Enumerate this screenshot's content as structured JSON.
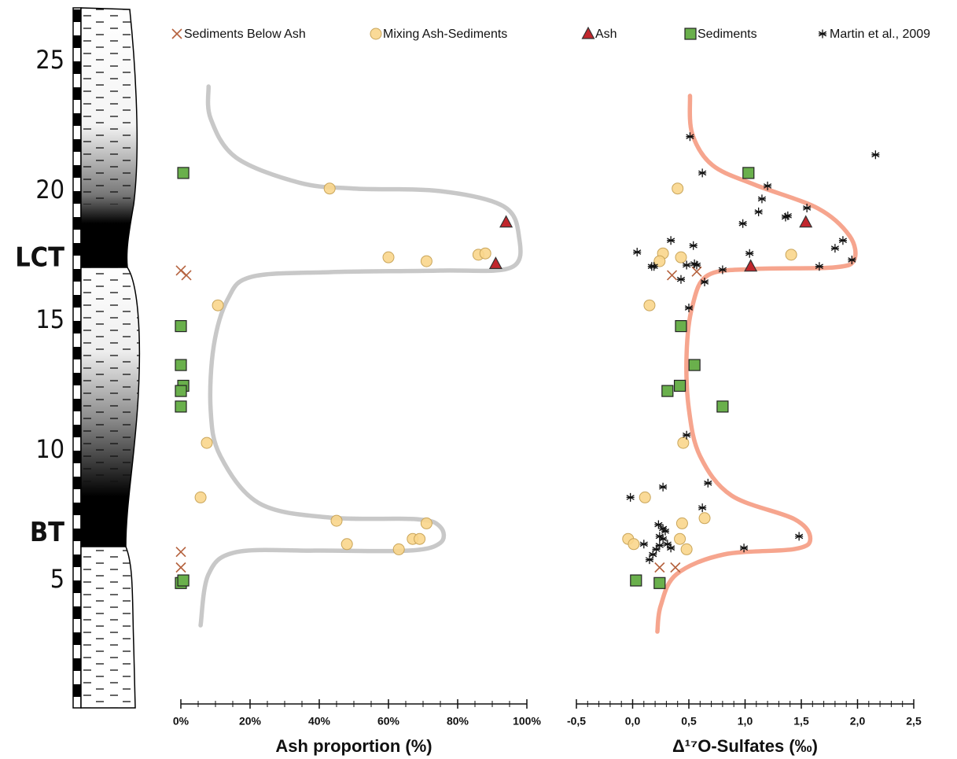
{
  "chart_data": [
    {
      "type": "scatter",
      "xlabel": "Ash proportion (%)",
      "xlim": [
        0,
        100
      ],
      "xticks": [
        {
          "value": 0,
          "label": "0%"
        },
        {
          "value": 20,
          "label": "20%"
        },
        {
          "value": 40,
          "label": "40%"
        },
        {
          "value": 60,
          "label": "60%"
        },
        {
          "value": 80,
          "label": "80%"
        },
        {
          "value": 100,
          "label": "100%"
        }
      ],
      "xminorticks": [
        5,
        10,
        15,
        25,
        30,
        35,
        45,
        50,
        55,
        65,
        70,
        75,
        85,
        90,
        95
      ],
      "ylim": [
        0,
        27
      ],
      "yticks": [
        5,
        10,
        15,
        20,
        25,
        {
          "value": 17.4,
          "label": "LCT"
        },
        {
          "value": 6.8,
          "label": "BT"
        }
      ],
      "series": [
        {
          "name": "Sediments Below Ash",
          "color": "#b5623e",
          "marker": "x",
          "x": [
            0,
            1.6,
            0,
            0
          ],
          "values": [
            16.94,
            16.76,
            6.1,
            5.5
          ]
        },
        {
          "name": "Mixing Ash-Sediments",
          "color": "#f9d68c",
          "marker": "circle",
          "x": [
            43,
            60,
            71,
            86,
            88,
            10.7,
            7.5,
            5.7,
            45,
            71,
            48,
            67,
            69,
            63
          ],
          "values": [
            20.1,
            17.45,
            17.3,
            17.55,
            17.6,
            15.6,
            10.3,
            8.2,
            7.3,
            7.2,
            6.4,
            6.6,
            6.6,
            6.2
          ]
        },
        {
          "name": "Ash",
          "color": "#c1272d",
          "marker": "triangle",
          "x": [
            94,
            91
          ],
          "values": [
            18.8,
            17.2
          ]
        },
        {
          "name": "Sediments",
          "color": "#6ab04c",
          "marker": "square",
          "x": [
            0.7,
            0,
            0,
            0.7,
            0,
            0,
            0,
            0.7
          ],
          "values": [
            20.7,
            14.8,
            13.3,
            12.5,
            12.3,
            11.7,
            4.9,
            5.0
          ]
        }
      ],
      "curve": {
        "color": "#c8c8c8",
        "x": [
          8,
          8.6,
          15.9,
          34.1,
          50,
          75,
          93.2,
          97.7,
          95.5,
          75,
          43.2,
          20.5,
          13.6,
          9.5,
          8.6,
          11.4,
          22.7,
          43.2,
          68.2,
          75,
          75,
          65.9,
          38.6,
          15.9,
          8,
          5.7
        ],
        "y": [
          24.03,
          22.8,
          21.3,
          20.33,
          20.1,
          20.0,
          19.42,
          18.27,
          17.06,
          16.94,
          16.88,
          16.7,
          15.85,
          14.03,
          11.6,
          9.8,
          7.97,
          7.42,
          7.36,
          7.06,
          6.45,
          6.15,
          6.15,
          6.09,
          5.24,
          3.27
        ]
      }
    },
    {
      "type": "scatter",
      "xlabel": "Δ¹⁷O-Sulfates (‰)",
      "xlim": [
        -0.5,
        2.5
      ],
      "xticks": [
        {
          "value": -0.5,
          "label": "-0,5"
        },
        {
          "value": 0,
          "label": "0,0"
        },
        {
          "value": 0.5,
          "label": "0,5"
        },
        {
          "value": 1,
          "label": "1,0"
        },
        {
          "value": 1.5,
          "label": "1,5"
        },
        {
          "value": 2,
          "label": "2,0"
        },
        {
          "value": 2.5,
          "label": "2,5"
        }
      ],
      "xminorticks": [
        -0.4,
        -0.3,
        -0.2,
        -0.1,
        0.1,
        0.2,
        0.3,
        0.4,
        0.6,
        0.7,
        0.8,
        0.9,
        1.1,
        1.2,
        1.3,
        1.4,
        1.6,
        1.7,
        1.8,
        1.9,
        2.1,
        2.2,
        2.3,
        2.4
      ],
      "series": [
        {
          "color": "#b5623e",
          "marker": "x",
          "x": [
            0.35,
            0.57,
            0.24,
            0.38
          ],
          "values": [
            16.76,
            16.9,
            5.5,
            5.5
          ]
        },
        {
          "color": "#f9d68c",
          "marker": "circle",
          "x": [
            0.4,
            0.27,
            0.24,
            0.43,
            1.41,
            0.15,
            0.45,
            0.11,
            0.44,
            0.64,
            -0.04,
            0.01,
            0.42,
            0.48
          ],
          "values": [
            20.1,
            17.6,
            17.3,
            17.45,
            17.55,
            15.6,
            10.3,
            8.2,
            7.2,
            7.4,
            6.6,
            6.4,
            6.6,
            6.2
          ]
        },
        {
          "color": "#c1272d",
          "marker": "triangle",
          "x": [
            1.54,
            1.05
          ],
          "values": [
            18.8,
            17.1
          ]
        },
        {
          "color": "#6ab04c",
          "marker": "square",
          "x": [
            1.03,
            0.43,
            0.55,
            0.42,
            0.31,
            0.8,
            0.03,
            0.24
          ],
          "values": [
            20.7,
            14.8,
            13.3,
            12.5,
            12.3,
            11.7,
            5.0,
            4.9
          ]
        },
        {
          "name": "Martin et al., 2009",
          "color": "#111111",
          "marker": "star",
          "x": [
            0.51,
            0.62,
            2.16,
            1.2,
            1.15,
            1.12,
            1.38,
            1.36,
            0.98,
            1.55,
            1.87,
            1.8,
            1.95,
            1.66,
            1.04,
            0.54,
            0.34,
            0.04,
            0.17,
            0.19,
            0.48,
            0.55,
            0.57,
            0.8,
            0.43,
            0.64,
            0.5,
            0.48,
            0.67,
            0.27,
            -0.02,
            0.62,
            0.23,
            0.27,
            0.29,
            0.24,
            0.27,
            0.31,
            0.1,
            0.34,
            0.21,
            0.18,
            0.15,
            0.99,
            1.48,
            0.24
          ],
          "values": [
            22.1,
            20.7,
            21.4,
            20.2,
            19.7,
            19.2,
            19.05,
            19.0,
            18.75,
            19.35,
            18.1,
            17.8,
            17.35,
            17.1,
            17.6,
            17.9,
            18.1,
            17.65,
            17.1,
            17.1,
            17.15,
            17.2,
            17.15,
            16.97,
            16.6,
            16.5,
            15.5,
            10.6,
            8.75,
            8.6,
            8.2,
            7.8,
            7.15,
            7.0,
            6.9,
            6.7,
            6.6,
            6.4,
            6.4,
            6.25,
            6.2,
            6.0,
            5.8,
            6.25,
            6.7,
            6.35
          ]
        }
      ],
      "curve": {
        "color": "#f6a58e",
        "x": [
          0.51,
          0.53,
          0.71,
          1.09,
          1.65,
          1.93,
          1.97,
          1.79,
          1.09,
          0.67,
          0.53,
          0.48,
          0.5,
          0.6,
          0.88,
          1.44,
          1.58,
          1.44,
          0.81,
          0.39,
          0.25,
          0.22
        ],
        "y": [
          23.67,
          22.21,
          21.0,
          20.24,
          19.33,
          18.27,
          17.36,
          17.06,
          17.0,
          16.76,
          15.55,
          13.73,
          11.61,
          9.79,
          8.27,
          7.36,
          6.61,
          6.21,
          6.0,
          5.24,
          4.03,
          3.03
        ]
      }
    }
  ]
}
